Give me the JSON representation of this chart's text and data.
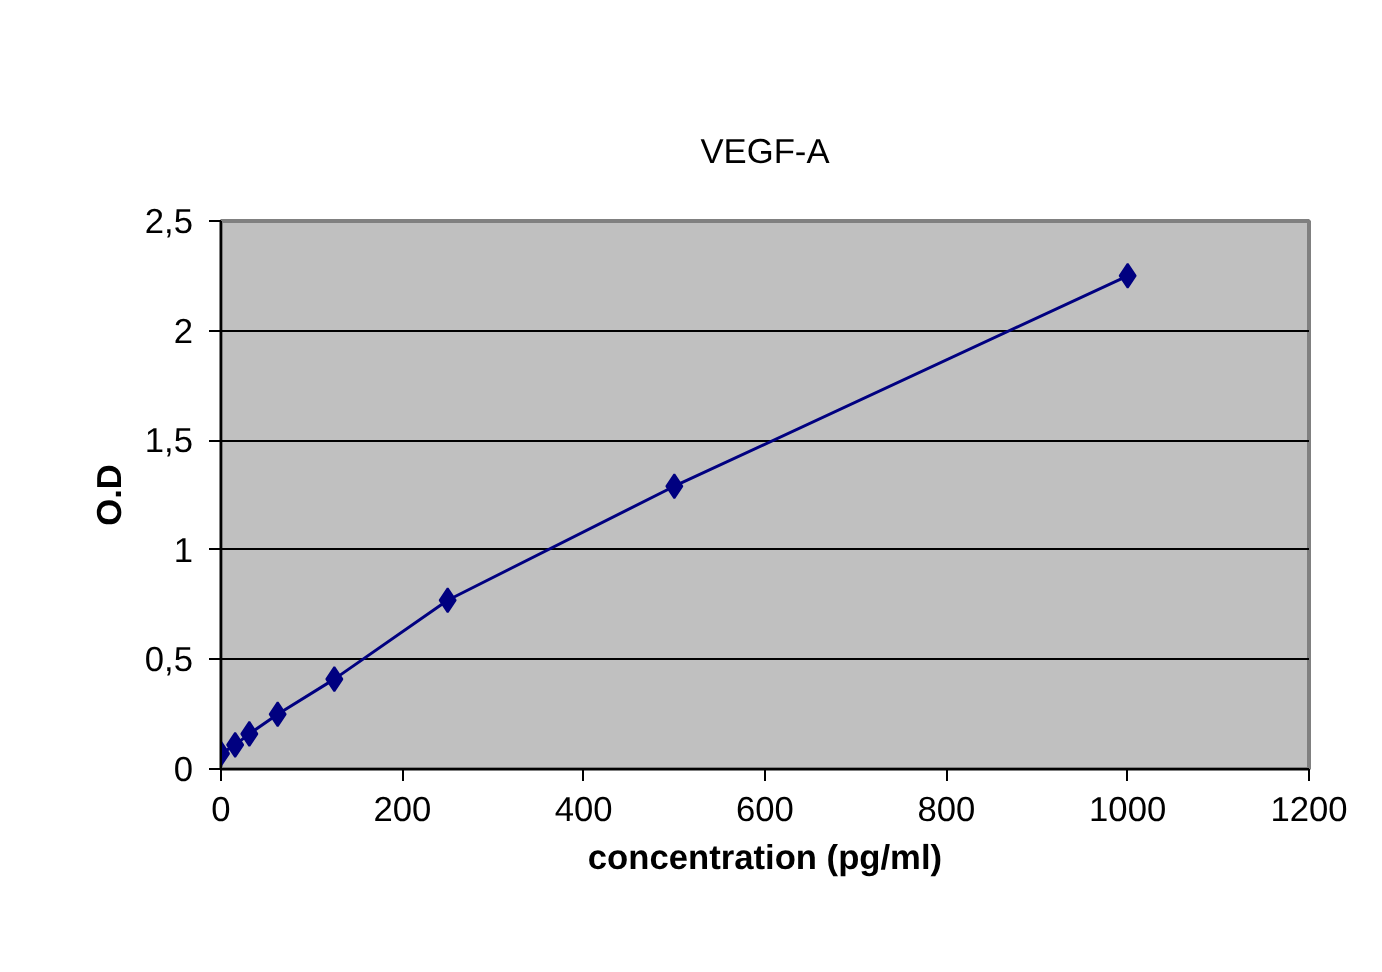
{
  "chart_data": {
    "type": "line",
    "title": "VEGF-A",
    "xlabel": "concentration (pg/ml)",
    "ylabel": "O.D",
    "x": [
      0,
      15.6,
      31.25,
      62.5,
      125,
      250,
      500,
      1000
    ],
    "series": [
      {
        "color": "#000080",
        "values": [
          0.07,
          0.11,
          0.16,
          0.25,
          0.41,
          0.77,
          1.29,
          2.25
        ]
      }
    ],
    "xlim": [
      0,
      1200
    ],
    "xticks": [
      0,
      200,
      400,
      600,
      800,
      1000,
      1200
    ],
    "ylim": [
      0,
      2.5
    ],
    "yticks": [
      0,
      {
        "value": 0.5,
        "label": "0,5"
      },
      1,
      {
        "value": 1.5,
        "label": "1,5"
      },
      2,
      {
        "value": 2.5,
        "label": "2,5"
      }
    ],
    "grid": "y",
    "marker": "diamond",
    "line_style": "solid"
  }
}
